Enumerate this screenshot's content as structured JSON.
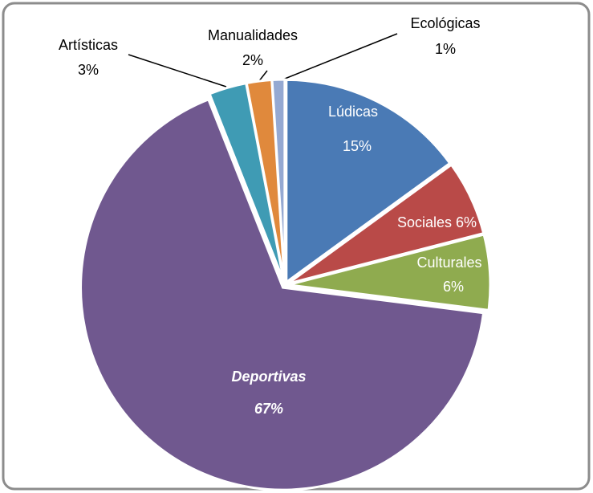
{
  "chart_data": {
    "type": "pie",
    "categories": [
      "Lúdicas",
      "Sociales",
      "Culturales",
      "Deportivas",
      "Artísticas",
      "Manualidades",
      "Ecológicas"
    ],
    "values": [
      15,
      6,
      6,
      67,
      3,
      2,
      1
    ],
    "value_labels": [
      "15%",
      "6%",
      "6%",
      "67%",
      "3%",
      "2%",
      "1%"
    ],
    "colors": [
      "#4a7ab5",
      "#b94a48",
      "#8fab4f",
      "#70588f",
      "#3f9bb4",
      "#e0893c",
      "#95a9d2"
    ]
  }
}
